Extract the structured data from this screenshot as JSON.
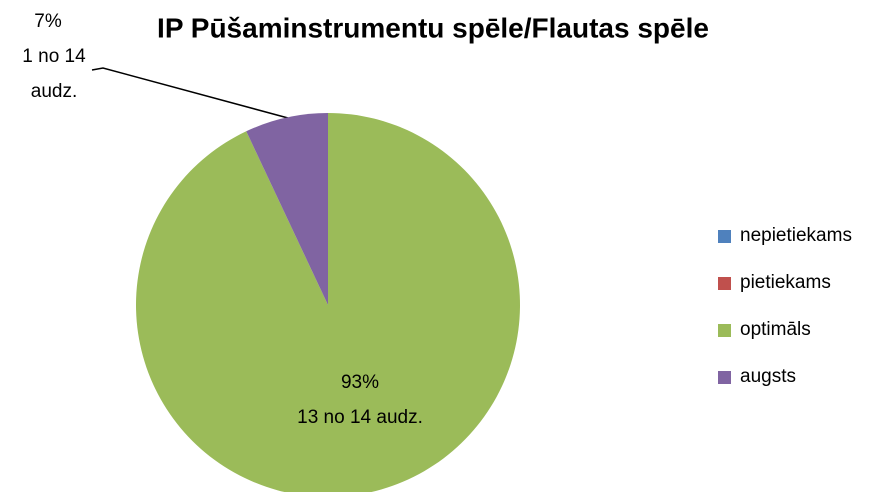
{
  "chart_data": {
    "type": "pie",
    "title": "IP Pūšaminstrumentu spēle/Flautas spēle",
    "categories": [
      "nepietiekams",
      "pietiekams",
      "optimāls",
      "augsts"
    ],
    "values": [
      0,
      0,
      93,
      7
    ],
    "value_labels": [
      null,
      null,
      [
        "93%",
        "13 no 14 audz."
      ],
      [
        "7%",
        "1 no 14",
        "audz."
      ]
    ],
    "colors": [
      "#4f81bd",
      "#c0504d",
      "#9bbb59",
      "#8064a2"
    ],
    "legend": "right"
  }
}
